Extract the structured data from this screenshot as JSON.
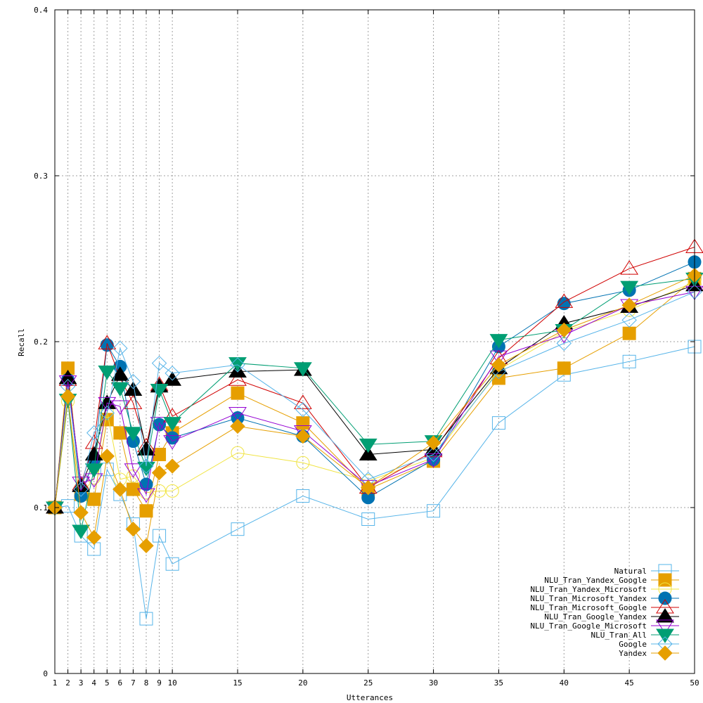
{
  "chart_data": {
    "type": "line",
    "title": "",
    "xlabel": "Utterances",
    "ylabel": "Recall",
    "xlim": [
      1,
      50
    ],
    "ylim": [
      0,
      0.4
    ],
    "x_ticks": [
      1,
      2,
      3,
      4,
      5,
      6,
      7,
      8,
      9,
      10,
      15,
      20,
      25,
      30,
      35,
      40,
      45,
      50
    ],
    "x_tick_labels": [
      "1",
      "2",
      "3",
      "4",
      "5",
      "6",
      "7",
      "8",
      "9",
      "10",
      "15",
      "20",
      "25",
      "30",
      "35",
      "40",
      "45",
      "50"
    ],
    "y_ticks": [
      0,
      0.1,
      0.2,
      0.3,
      0.4
    ],
    "y_tick_labels": [
      "0",
      "0.1",
      "0.2",
      "0.3",
      "0.4"
    ],
    "grid": true,
    "legend_position": "bottom-right",
    "x": [
      1,
      2,
      3,
      4,
      5,
      6,
      7,
      8,
      9,
      10,
      15,
      20,
      25,
      30,
      35,
      40,
      45,
      50
    ],
    "series": [
      {
        "name": "Natural",
        "color": "#56b4e9",
        "marker": "square-open",
        "values": [
          0.1,
          0.101,
          0.083,
          0.075,
          0.123,
          0.108,
          0.09,
          0.033,
          0.083,
          0.066,
          0.087,
          0.107,
          0.093,
          0.098,
          0.151,
          0.18,
          0.188,
          0.197
        ]
      },
      {
        "name": "NLU_Tran_Yandex_Google",
        "color": "#e69f00",
        "marker": "square",
        "values": [
          0.1,
          0.184,
          0.108,
          0.105,
          0.153,
          0.145,
          0.111,
          0.098,
          0.132,
          0.145,
          0.169,
          0.151,
          0.111,
          0.128,
          0.178,
          0.184,
          0.205,
          0.238
        ]
      },
      {
        "name": "NLU_Tran_Yandex_Microsoft",
        "color": "#f0e442",
        "marker": "circle-open",
        "values": [
          0.1,
          0.164,
          0.107,
          0.118,
          0.158,
          0.117,
          0.119,
          0.109,
          0.11,
          0.11,
          0.133,
          0.127,
          0.116,
          0.13,
          0.183,
          0.206,
          0.219,
          0.236
        ]
      },
      {
        "name": "NLU_Tran_Microsoft_Yandex",
        "color": "#0072b2",
        "marker": "circle",
        "values": [
          0.1,
          0.177,
          0.107,
          0.129,
          0.198,
          0.185,
          0.14,
          0.114,
          0.15,
          0.142,
          0.154,
          0.143,
          0.106,
          0.129,
          0.197,
          0.223,
          0.231,
          0.248
        ]
      },
      {
        "name": "NLU_Tran_Microsoft_Google",
        "color": "#d00000",
        "marker": "triangle-open",
        "values": [
          0.1,
          0.177,
          0.114,
          0.139,
          0.199,
          0.178,
          0.163,
          0.137,
          0.174,
          0.155,
          0.177,
          0.163,
          0.112,
          0.134,
          0.19,
          0.224,
          0.244,
          0.257
        ]
      },
      {
        "name": "NLU_Tran_Google_Yandex",
        "color": "#000000",
        "marker": "triangle",
        "values": [
          0.1,
          0.178,
          0.113,
          0.132,
          0.163,
          0.18,
          0.171,
          0.135,
          0.173,
          0.177,
          0.182,
          0.183,
          0.132,
          0.135,
          0.184,
          0.211,
          0.221,
          0.234
        ]
      },
      {
        "name": "NLU_Tran_Google_Microsoft",
        "color": "#9400d3",
        "marker": "invtriangle-open",
        "values": [
          0.1,
          0.176,
          0.115,
          0.117,
          0.163,
          0.161,
          0.123,
          0.108,
          0.151,
          0.14,
          0.157,
          0.146,
          0.113,
          0.129,
          0.191,
          0.204,
          0.222,
          0.23
        ]
      },
      {
        "name": "NLU_Tran_All",
        "color": "#009e73",
        "marker": "invtriangle",
        "values": [
          0.1,
          0.165,
          0.086,
          0.123,
          0.182,
          0.172,
          0.145,
          0.124,
          0.171,
          0.151,
          0.187,
          0.184,
          0.138,
          0.14,
          0.201,
          0.207,
          0.233,
          0.238
        ]
      },
      {
        "name": "Google",
        "color": "#56b4e9",
        "marker": "diamond-open",
        "values": [
          0.1,
          0.173,
          0.111,
          0.145,
          0.157,
          0.196,
          0.176,
          0.125,
          0.187,
          0.181,
          0.186,
          0.159,
          0.117,
          0.132,
          0.182,
          0.199,
          0.213,
          0.23
        ]
      },
      {
        "name": "Yandex",
        "color": "#e69f00",
        "marker": "diamond",
        "values": [
          0.1,
          0.167,
          0.097,
          0.082,
          0.131,
          0.111,
          0.087,
          0.077,
          0.121,
          0.125,
          0.149,
          0.143,
          0.112,
          0.139,
          0.186,
          0.207,
          0.222,
          0.24
        ]
      }
    ]
  }
}
